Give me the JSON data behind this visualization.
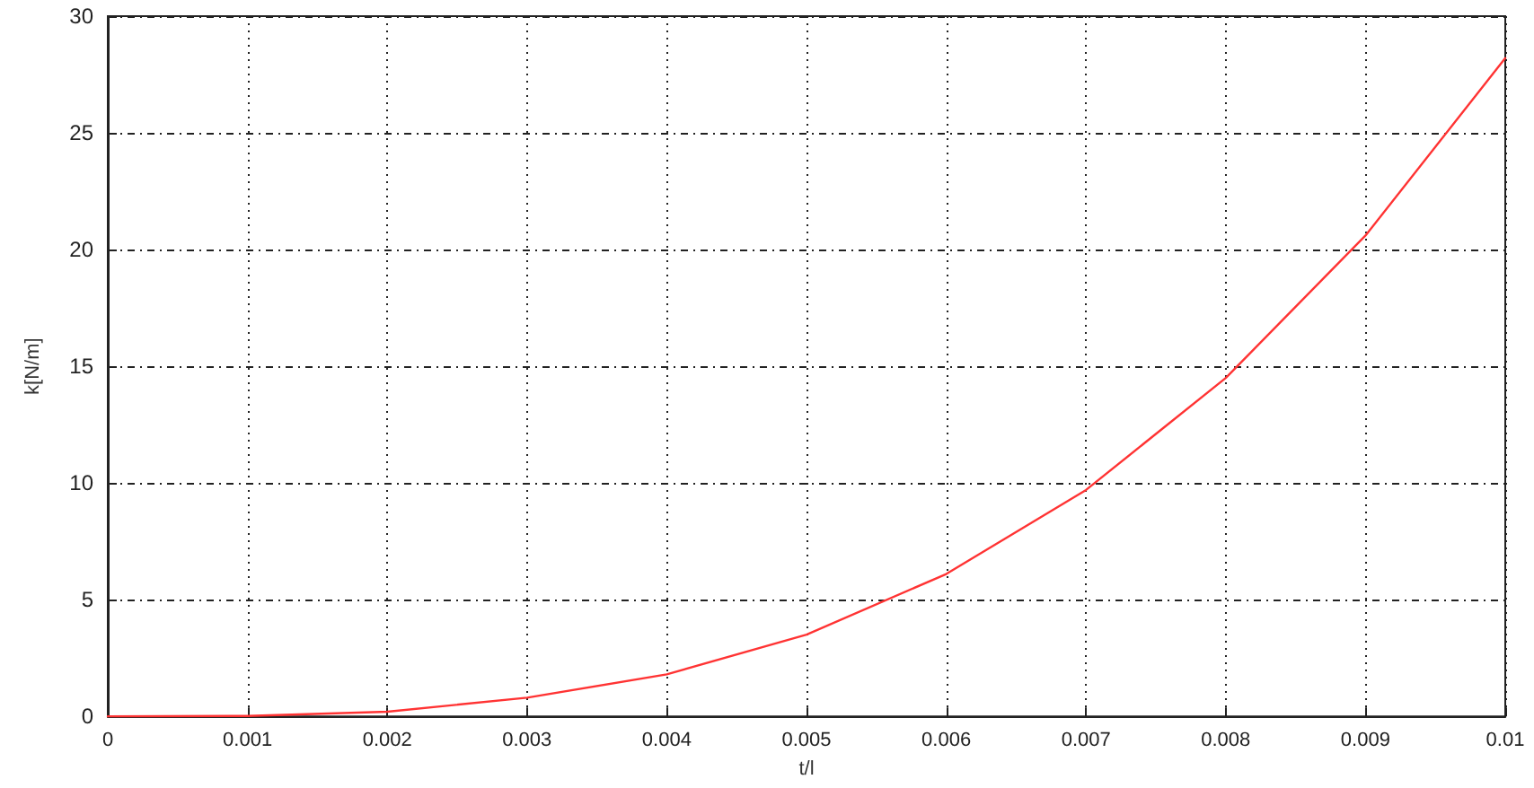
{
  "chart_data": {
    "type": "line",
    "xlabel": "t/l",
    "ylabel": "k[N/m]",
    "x": [
      0,
      0.001,
      0.002,
      0.003,
      0.004,
      0.005,
      0.006,
      0.007,
      0.008,
      0.009,
      0.01
    ],
    "series": [
      {
        "color": "#ff3333",
        "values": [
          0,
          0.02,
          0.2,
          0.8,
          1.8,
          3.5,
          6.1,
          9.7,
          14.5,
          20.6,
          28.2
        ]
      }
    ],
    "xlim": [
      0,
      0.01
    ],
    "xticks": [
      0,
      0.001,
      0.002,
      0.003,
      0.004,
      0.005,
      0.006,
      0.007,
      0.008,
      0.009,
      0.01
    ],
    "ylim": [
      0,
      30
    ],
    "yticks": [
      0,
      5,
      10,
      15,
      20,
      25,
      30
    ],
    "grid": true,
    "marker": "none",
    "line_style": "solid"
  }
}
